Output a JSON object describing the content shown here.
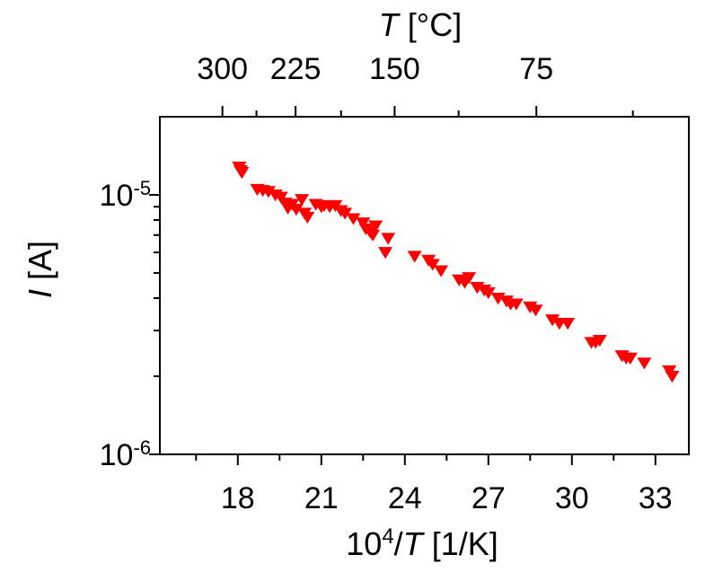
{
  "chart_data": {
    "type": "scatter",
    "title": "",
    "xlabel": {
      "base": "10",
      "exp": "4",
      "slash": "/",
      "var": "T",
      "unit": " [1/K]"
    },
    "ylabel": {
      "var": "I",
      "unit": " [A]"
    },
    "top_xlabel": {
      "var": "T",
      "unit": " [°C]"
    },
    "xlim": [
      15.2,
      34.2
    ],
    "ylim": [
      1e-06,
      2e-05
    ],
    "yscale": "log",
    "grid": false,
    "legend": "none",
    "marker": "triangle-down",
    "color": "#ff0000",
    "x_ticks": [
      {
        "value": 18,
        "label": "18"
      },
      {
        "value": 21,
        "label": "21"
      },
      {
        "value": 24,
        "label": "24"
      },
      {
        "value": 27,
        "label": "27"
      },
      {
        "value": 30,
        "label": "30"
      },
      {
        "value": 33,
        "label": "33"
      }
    ],
    "y_ticks": [
      {
        "value": 1e-06,
        "base": "10",
        "exp": "-6"
      },
      {
        "value": 1e-05,
        "base": "10",
        "exp": "-5"
      }
    ],
    "top_ticks": [
      {
        "celsius": 300,
        "label": "300"
      },
      {
        "celsius": 225,
        "label": "225"
      },
      {
        "celsius": 150,
        "label": "150"
      },
      {
        "celsius": 75,
        "label": "75"
      }
    ],
    "points": [
      {
        "x": 18.05,
        "y": 1.28e-05
      },
      {
        "x": 18.1,
        "y": 1.24e-05
      },
      {
        "x": 18.15,
        "y": 1.22e-05
      },
      {
        "x": 18.7,
        "y": 1.05e-05
      },
      {
        "x": 18.9,
        "y": 1.04e-05
      },
      {
        "x": 19.1,
        "y": 1.03e-05
      },
      {
        "x": 19.35,
        "y": 1e-05
      },
      {
        "x": 19.55,
        "y": 9.8e-06
      },
      {
        "x": 19.7,
        "y": 9.3e-06
      },
      {
        "x": 19.8,
        "y": 8.9e-06
      },
      {
        "x": 19.95,
        "y": 9.2e-06
      },
      {
        "x": 20.1,
        "y": 8.8e-06
      },
      {
        "x": 20.3,
        "y": 9.6e-06
      },
      {
        "x": 20.4,
        "y": 8.5e-06
      },
      {
        "x": 20.5,
        "y": 8.2e-06
      },
      {
        "x": 20.8,
        "y": 9.2e-06
      },
      {
        "x": 21.0,
        "y": 9e-06
      },
      {
        "x": 21.1,
        "y": 9.1e-06
      },
      {
        "x": 21.3,
        "y": 9e-06
      },
      {
        "x": 21.5,
        "y": 9.1e-06
      },
      {
        "x": 21.7,
        "y": 8.7e-06
      },
      {
        "x": 21.85,
        "y": 8.5e-06
      },
      {
        "x": 22.15,
        "y": 8.1e-06
      },
      {
        "x": 22.5,
        "y": 7.8e-06
      },
      {
        "x": 22.6,
        "y": 7.4e-06
      },
      {
        "x": 22.75,
        "y": 7.2e-06
      },
      {
        "x": 22.85,
        "y": 7e-06
      },
      {
        "x": 22.95,
        "y": 7.6e-06
      },
      {
        "x": 23.3,
        "y": 6e-06
      },
      {
        "x": 23.4,
        "y": 6.8e-06
      },
      {
        "x": 24.35,
        "y": 5.8e-06
      },
      {
        "x": 24.85,
        "y": 5.6e-06
      },
      {
        "x": 25.0,
        "y": 5.4e-06
      },
      {
        "x": 25.3,
        "y": 5.1e-06
      },
      {
        "x": 25.95,
        "y": 4.7e-06
      },
      {
        "x": 26.15,
        "y": 4.6e-06
      },
      {
        "x": 26.3,
        "y": 4.8e-06
      },
      {
        "x": 26.6,
        "y": 4.4e-06
      },
      {
        "x": 26.85,
        "y": 4.3e-06
      },
      {
        "x": 27.0,
        "y": 4.2e-06
      },
      {
        "x": 27.35,
        "y": 4e-06
      },
      {
        "x": 27.65,
        "y": 3.9e-06
      },
      {
        "x": 27.8,
        "y": 3.8e-06
      },
      {
        "x": 28.0,
        "y": 3.8e-06
      },
      {
        "x": 28.5,
        "y": 3.7e-06
      },
      {
        "x": 28.7,
        "y": 3.6e-06
      },
      {
        "x": 29.3,
        "y": 3.3e-06
      },
      {
        "x": 29.55,
        "y": 3.2e-06
      },
      {
        "x": 29.85,
        "y": 3.2e-06
      },
      {
        "x": 30.7,
        "y": 2.7e-06
      },
      {
        "x": 30.85,
        "y": 2.7e-06
      },
      {
        "x": 31.0,
        "y": 2.75e-06
      },
      {
        "x": 31.8,
        "y": 2.4e-06
      },
      {
        "x": 31.95,
        "y": 2.35e-06
      },
      {
        "x": 32.1,
        "y": 2.35e-06
      },
      {
        "x": 32.6,
        "y": 2.25e-06
      },
      {
        "x": 33.5,
        "y": 2.1e-06
      },
      {
        "x": 33.6,
        "y": 2e-06
      }
    ]
  }
}
